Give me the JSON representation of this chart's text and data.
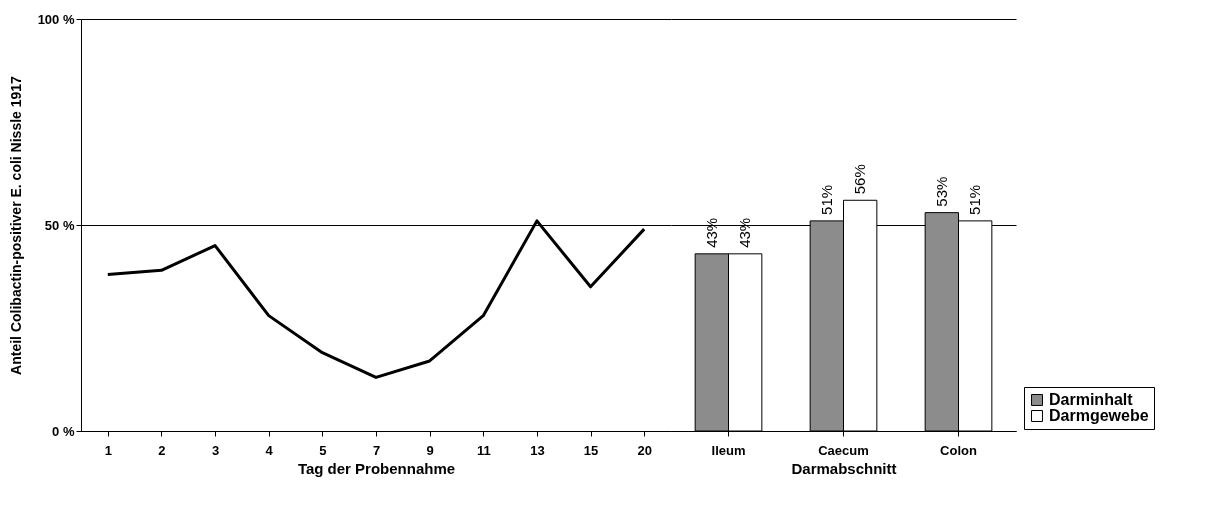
{
  "chart_data": [
    {
      "type": "line",
      "categories": [
        "1",
        "2",
        "3",
        "4",
        "5",
        "7",
        "9",
        "11",
        "13",
        "15",
        "20"
      ],
      "xlabel": "Tag der Probennahme",
      "ylabel": "Anteil Colibactin-positiver E. coli Nissle 1917",
      "ylim": [
        0,
        100
      ],
      "yticks": [
        {
          "value": 0,
          "label": "0 %"
        },
        {
          "value": 50,
          "label": "50 %"
        },
        {
          "value": 100,
          "label": "100 %"
        }
      ],
      "grid": "y",
      "series": [
        {
          "color": "#000000",
          "values": [
            38,
            39,
            45,
            28,
            19,
            13,
            17,
            28,
            51,
            35,
            49
          ]
        }
      ]
    },
    {
      "type": "bar",
      "categories": [
        "Ileum",
        "Caecum",
        "Colon"
      ],
      "xlabel": "Darmabschnitt",
      "ylim": [
        0,
        100
      ],
      "yticks": [
        {
          "value": 0,
          "label": null
        },
        {
          "value": 50,
          "label": null
        },
        {
          "value": 100,
          "label": null
        }
      ],
      "grid": "y",
      "tick_labels": "x",
      "legend": "bottom right",
      "series": [
        {
          "name": "Darminhalt",
          "color": "#8c8c8c",
          "values": [
            43,
            51,
            53
          ],
          "value_labels": [
            "43%",
            "51%",
            "53%"
          ]
        },
        {
          "name": "Darmgewebe",
          "color": "#ffffff",
          "values": [
            43,
            56,
            51
          ],
          "value_labels": [
            "43%",
            "56%",
            "51%"
          ]
        }
      ]
    }
  ]
}
